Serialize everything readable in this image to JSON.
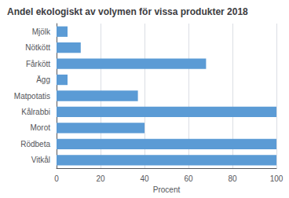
{
  "chart_data": {
    "type": "bar",
    "orientation": "horizontal",
    "title": "Andel ekologiskt av volymen för vissa produkter 2018",
    "categories": [
      "Vitkål",
      "Rödbeta",
      "Morot",
      "Kålrabbi",
      "Matpotatis",
      "Ägg",
      "Fårkött",
      "Nötkött",
      "Mjölk"
    ],
    "values": [
      100,
      100,
      40,
      100,
      37,
      5,
      68,
      11,
      5
    ],
    "color": "#5B9BD5",
    "xlabel": "Procent",
    "xlim": [
      0,
      100
    ],
    "xticks": [
      0,
      20,
      40,
      60,
      80,
      100
    ],
    "grid": true
  }
}
